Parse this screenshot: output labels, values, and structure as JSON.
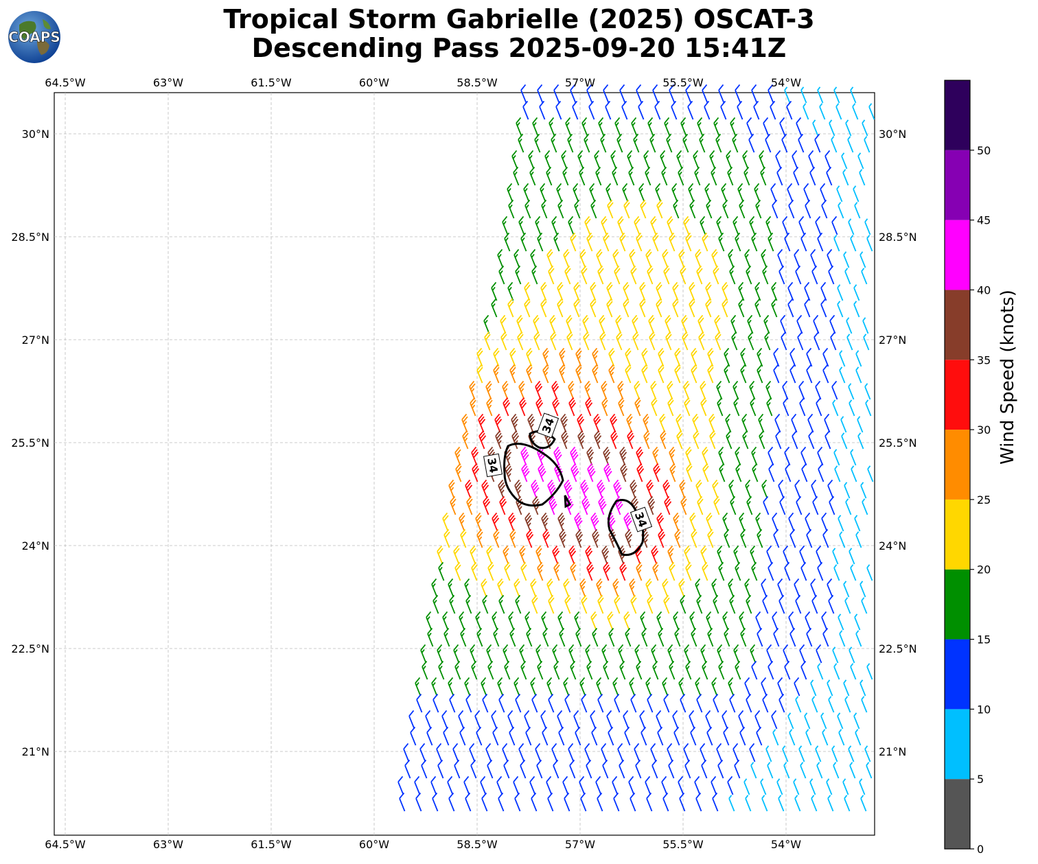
{
  "logo": {
    "text": "COAPS"
  },
  "title": {
    "line1": "Tropical Storm Gabrielle (2025) OSCAT-3",
    "line2": "Descending Pass 2025-09-20 15:41Z"
  },
  "map": {
    "lon_ticks": [
      "64.5°W",
      "63°W",
      "61.5°W",
      "60°W",
      "58.5°W",
      "57°W",
      "55.5°W",
      "54°W"
    ],
    "lat_ticks": [
      "30°N",
      "28.5°N",
      "27°N",
      "25.5°N",
      "24°N",
      "22.5°N",
      "21°N"
    ],
    "contour_label": "34"
  },
  "colorbar": {
    "title": "Wind Speed (knots)",
    "ticks": [
      "0",
      "5",
      "10",
      "15",
      "20",
      "25",
      "30",
      "35",
      "40",
      "45",
      "50"
    ],
    "bins": [
      {
        "min": 0,
        "max": 5,
        "color": "#555555"
      },
      {
        "min": 5,
        "max": 10,
        "color": "#00bfff"
      },
      {
        "min": 10,
        "max": 15,
        "color": "#0033ff"
      },
      {
        "min": 15,
        "max": 20,
        "color": "#008f00"
      },
      {
        "min": 20,
        "max": 25,
        "color": "#ffd700"
      },
      {
        "min": 25,
        "max": 30,
        "color": "#ff8c00"
      },
      {
        "min": 30,
        "max": 35,
        "color": "#ff0d0d"
      },
      {
        "min": 35,
        "max": 40,
        "color": "#873d2a"
      },
      {
        "min": 40,
        "max": 45,
        "color": "#ff00ff"
      },
      {
        "min": 45,
        "max": 50,
        "color": "#8600b3"
      },
      {
        "min": 50,
        "max": 55,
        "color": "#2e005c"
      }
    ]
  }
}
